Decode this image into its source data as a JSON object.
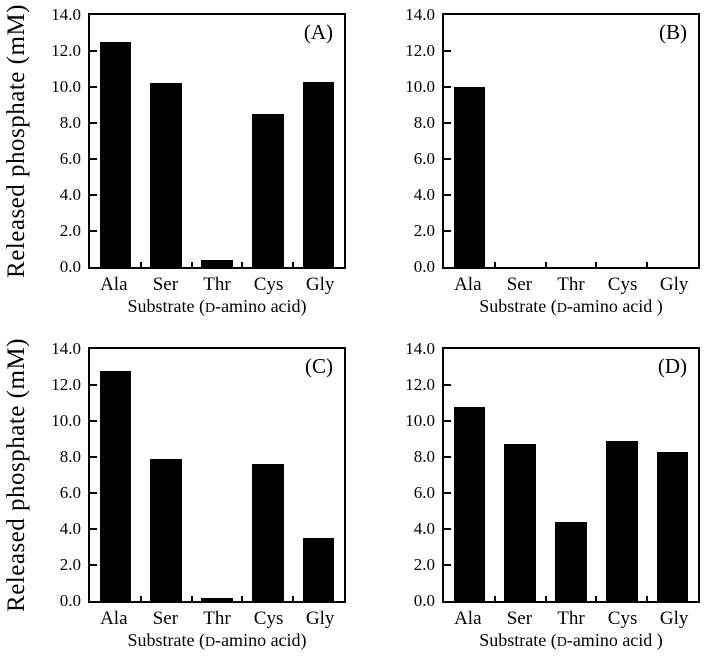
{
  "figure": {
    "background_color": "#ffffff",
    "bar_color": "#000000",
    "axis_color": "#000000",
    "y_axis_title": "Released phosphate (mM)"
  },
  "chart_data": [
    {
      "type": "bar",
      "panel_label": "(A)",
      "categories": [
        "Ala",
        "Ser",
        "Thr",
        "Cys",
        "Gly"
      ],
      "values": [
        12.5,
        10.2,
        0.4,
        8.5,
        10.3
      ],
      "title": "",
      "xlabel": "Substrate (D-amino acid)",
      "ylabel": "Released phosphate (mM)",
      "ylim": [
        0,
        14
      ],
      "ytick_step": 2,
      "ytick_labels": [
        "0.0",
        "2.0",
        "4.0",
        "6.0",
        "8.0",
        "10.0",
        "12.0",
        "14.0"
      ],
      "grid": false,
      "legend": "none"
    },
    {
      "type": "bar",
      "panel_label": "(B)",
      "categories": [
        "Ala",
        "Ser",
        "Thr",
        "Cys",
        "Gly"
      ],
      "values": [
        10.0,
        0.0,
        0.0,
        0.0,
        0.0
      ],
      "title": "",
      "xlabel": "Substrate (D-amino acid )",
      "ylabel": "",
      "ylim": [
        0,
        14
      ],
      "ytick_step": 2,
      "ytick_labels": [
        "0.0",
        "2.0",
        "4.0",
        "6.0",
        "8.0",
        "10.0",
        "12.0",
        "14.0"
      ],
      "grid": false,
      "legend": "none"
    },
    {
      "type": "bar",
      "panel_label": "(C)",
      "categories": [
        "Ala",
        "Ser",
        "Thr",
        "Cys",
        "Gly"
      ],
      "values": [
        12.8,
        7.9,
        0.15,
        7.6,
        3.5
      ],
      "title": "",
      "xlabel": "Substrate (D-amino acid)",
      "ylabel": "Released phosphate (mM)",
      "ylim": [
        0,
        14
      ],
      "ytick_step": 2,
      "ytick_labels": [
        "0.0",
        "2.0",
        "4.0",
        "6.0",
        "8.0",
        "10.0",
        "12.0",
        "14.0"
      ],
      "grid": false,
      "legend": "none"
    },
    {
      "type": "bar",
      "panel_label": "(D)",
      "categories": [
        "Ala",
        "Ser",
        "Thr",
        "Cys",
        "Gly"
      ],
      "values": [
        10.8,
        8.7,
        4.4,
        8.9,
        8.3
      ],
      "title": "",
      "xlabel": "Substrate (D-amino acid )",
      "ylabel": "",
      "ylim": [
        0,
        14
      ],
      "ytick_step": 2,
      "ytick_labels": [
        "0.0",
        "2.0",
        "4.0",
        "6.0",
        "8.0",
        "10.0",
        "12.0",
        "14.0"
      ],
      "grid": false,
      "legend": "none"
    }
  ]
}
